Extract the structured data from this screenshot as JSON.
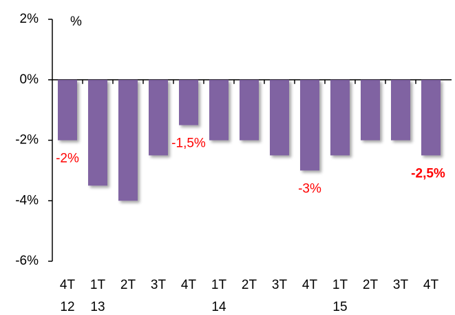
{
  "chart_data": {
    "type": "bar",
    "unit_label": "%",
    "categories": [
      "4T",
      "1T",
      "2T",
      "3T",
      "4T",
      "1T",
      "2T",
      "3T",
      "4T",
      "1T",
      "2T",
      "3T",
      "4T"
    ],
    "category_years": [
      "12",
      "13",
      null,
      null,
      null,
      "14",
      null,
      null,
      null,
      "15",
      null,
      null,
      null
    ],
    "values": [
      -2,
      -3.5,
      -4,
      -2.5,
      -1.5,
      -2,
      -2,
      -2.5,
      -3,
      -2.5,
      -2,
      -2,
      -2.5
    ],
    "value_labels": [
      "-2%",
      null,
      null,
      null,
      "-1,5%",
      null,
      null,
      null,
      "-3%",
      null,
      null,
      null,
      "-2,5%"
    ],
    "bold_label_index": 12,
    "color": "#8064a2",
    "label_color": "#ff0000",
    "ylim": [
      -6,
      2
    ],
    "yticks": [
      {
        "value": -6,
        "label": "-6%"
      },
      {
        "value": -4,
        "label": "-4%"
      },
      {
        "value": -2,
        "label": "-2%"
      },
      {
        "value": 0,
        "label": "0%"
      },
      {
        "value": 2,
        "label": "2%"
      }
    ],
    "grid": false
  }
}
